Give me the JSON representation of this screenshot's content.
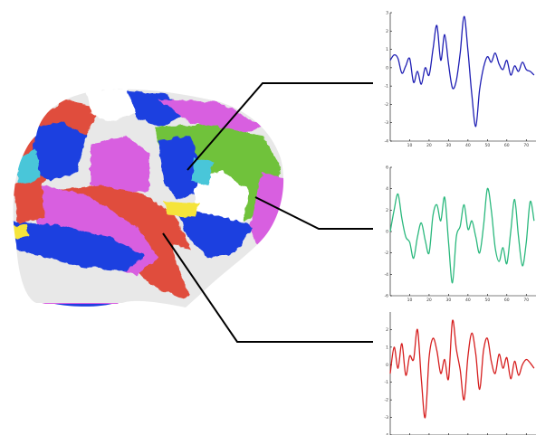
{
  "brain": {
    "region_colors": [
      "#1f3fe0",
      "#e8e8e8",
      "#d85fe0",
      "#e04e3c",
      "#6fc23a",
      "#f5e43a",
      "#49c6d9",
      "#ffffff"
    ]
  },
  "chart_data": [
    {
      "type": "line",
      "color": "#1f1fb4",
      "x": [
        0,
        2,
        4,
        6,
        8,
        10,
        12,
        14,
        16,
        18,
        20,
        22,
        24,
        26,
        28,
        30,
        32,
        34,
        36,
        38,
        40,
        42,
        44,
        46,
        48,
        50,
        52,
        54,
        56,
        58,
        60,
        62,
        64,
        66,
        68,
        70,
        72,
        74
      ],
      "values": [
        0.4,
        0.7,
        0.5,
        -0.3,
        0.1,
        0.5,
        -0.8,
        -0.2,
        -0.9,
        0.0,
        -0.4,
        1.0,
        2.3,
        0.4,
        1.8,
        0.2,
        -1.1,
        -0.7,
        0.8,
        2.8,
        0.9,
        -1.5,
        -3.2,
        -1.2,
        0.0,
        0.6,
        0.3,
        0.8,
        0.2,
        -0.1,
        0.4,
        -0.4,
        0.1,
        -0.2,
        0.3,
        -0.1,
        -0.2,
        -0.4
      ],
      "xlim": [
        0,
        75
      ],
      "ylim": [
        -4,
        3
      ],
      "yticks": [
        3,
        2,
        1,
        0,
        -1,
        -2,
        -3,
        -4
      ],
      "xticks": [
        10,
        20,
        30,
        40,
        50,
        60,
        70
      ],
      "ytick_labels": [
        "3",
        "2",
        "1",
        "0",
        "-1",
        "-2",
        "-3",
        "-4"
      ],
      "xtick_labels": [
        "10",
        "20",
        "30",
        "40",
        "50",
        "60",
        "70"
      ]
    },
    {
      "type": "line",
      "color": "#2ab87d",
      "x": [
        0,
        2,
        4,
        6,
        8,
        10,
        12,
        14,
        16,
        18,
        20,
        22,
        24,
        26,
        28,
        30,
        32,
        34,
        36,
        38,
        40,
        42,
        44,
        46,
        48,
        50,
        52,
        54,
        56,
        58,
        60,
        62,
        64,
        66,
        68,
        70,
        72,
        74
      ],
      "values": [
        0.0,
        2.0,
        3.5,
        1.2,
        -0.5,
        -1.0,
        -2.5,
        -0.5,
        0.8,
        -0.8,
        -2.0,
        1.5,
        2.5,
        1.0,
        3.2,
        -1.0,
        -4.8,
        -0.5,
        0.5,
        2.5,
        0.2,
        1.0,
        -0.5,
        -2.0,
        0.5,
        4.0,
        2.0,
        -1.5,
        -2.8,
        -1.5,
        -3.0,
        0.0,
        3.0,
        -0.5,
        -3.2,
        -1.0,
        2.8,
        1.0
      ],
      "xlim": [
        0,
        75
      ],
      "ylim": [
        -6,
        6
      ],
      "yticks": [
        6,
        4,
        2,
        0,
        -2,
        -4,
        -6
      ],
      "xticks": [
        10,
        20,
        30,
        40,
        50,
        60,
        70
      ],
      "ytick_labels": [
        "6",
        "4",
        "2",
        "0",
        "-2",
        "-4",
        "-6"
      ],
      "xtick_labels": [
        "10",
        "20",
        "30",
        "40",
        "50",
        "60",
        "70"
      ]
    },
    {
      "type": "line",
      "color": "#d61f1f",
      "x": [
        0,
        2,
        4,
        6,
        8,
        10,
        12,
        14,
        16,
        18,
        20,
        22,
        24,
        26,
        28,
        30,
        32,
        34,
        36,
        38,
        40,
        42,
        44,
        46,
        48,
        50,
        52,
        54,
        56,
        58,
        60,
        62,
        64,
        66,
        68,
        70,
        72,
        74
      ],
      "values": [
        -0.5,
        1.0,
        -0.2,
        1.2,
        -0.6,
        0.5,
        0.3,
        2.0,
        -0.8,
        -3.0,
        0.4,
        1.5,
        0.8,
        -0.5,
        0.3,
        -0.8,
        2.5,
        0.9,
        -0.3,
        -2.0,
        0.5,
        1.8,
        0.6,
        -1.4,
        0.8,
        1.5,
        0.2,
        -0.5,
        0.6,
        -0.2,
        0.4,
        -0.8,
        0.2,
        -0.6,
        0.0,
        0.3,
        0.1,
        -0.2
      ],
      "xlim": [
        0,
        75
      ],
      "ylim": [
        -4,
        3
      ],
      "yticks": [
        2,
        1,
        0,
        -1,
        -2,
        -3,
        -4
      ],
      "xticks": [
        10,
        20,
        30,
        40,
        50,
        60,
        70
      ],
      "ytick_labels": [
        "2",
        "1",
        "0",
        "-1",
        "-2",
        "-3",
        "-4"
      ],
      "xtick_labels": [
        "10",
        "20",
        "30",
        "40",
        "50",
        "60",
        "70"
      ]
    }
  ]
}
